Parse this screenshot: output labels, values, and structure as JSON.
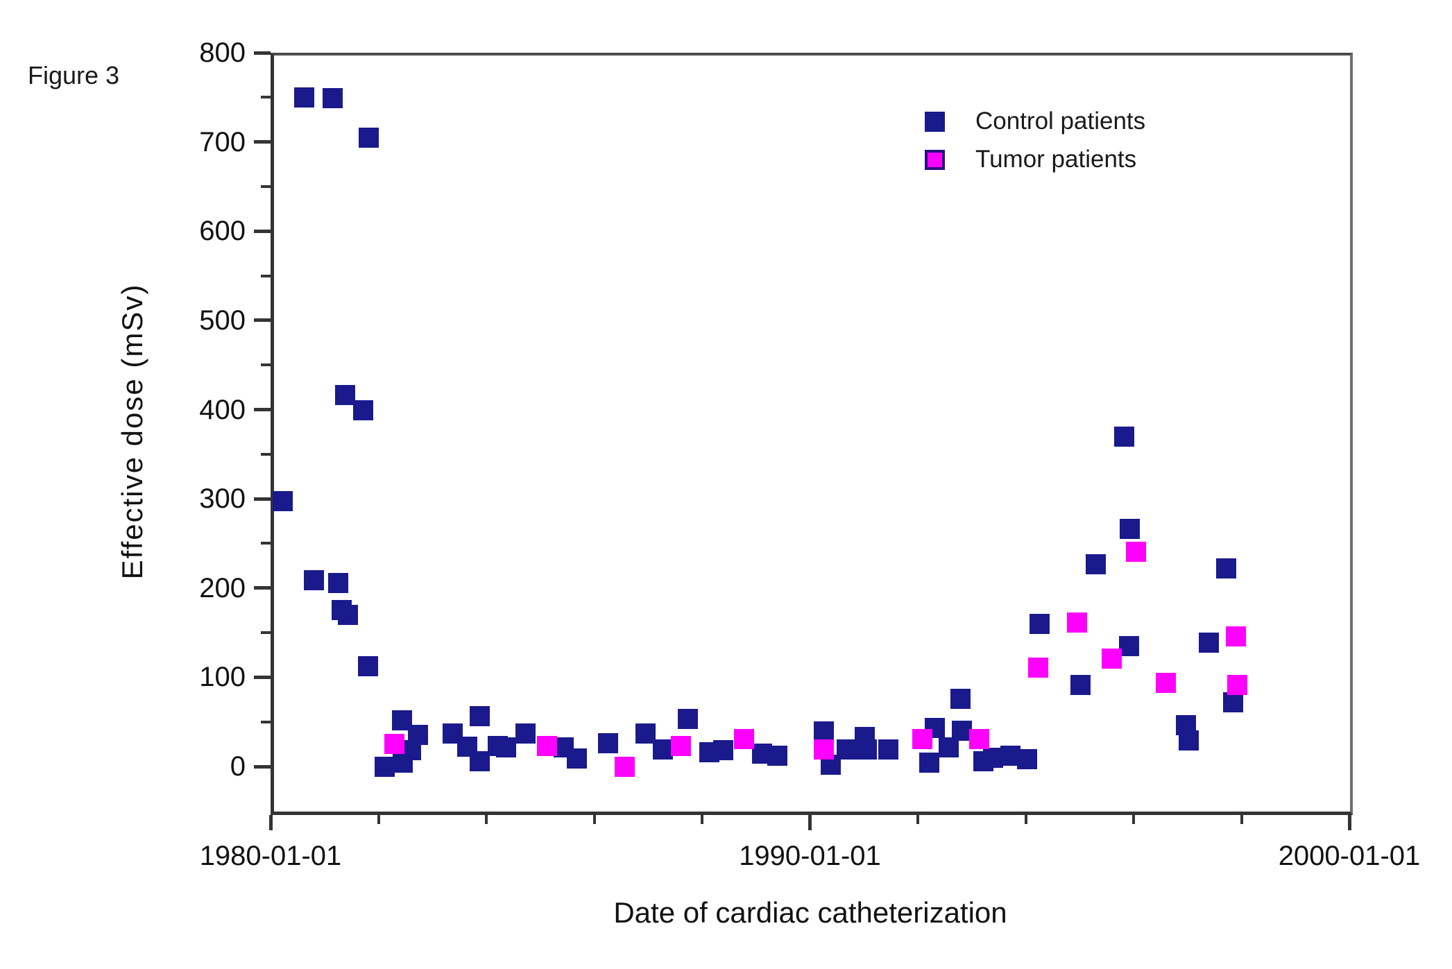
{
  "figure_label": "Figure 3",
  "colors": {
    "control": "#1a1a8c",
    "tumor": "#ff00ff",
    "axis": "#343434",
    "text": "#1a1a1a",
    "background": "#ffffff"
  },
  "legend": {
    "position": "top-right",
    "entries": [
      {
        "label": "Control patients",
        "color": "#1a1a8c"
      },
      {
        "label": "Tumor patients",
        "color": "#ff00ff"
      }
    ]
  },
  "chart_data": {
    "type": "scatter",
    "title": "",
    "xlabel": "Date of cardiac catheterization",
    "ylabel": "Effective dose (mSv)",
    "grid": false,
    "x_axis": {
      "unit": "date",
      "range_years": [
        1980,
        2000
      ],
      "major_ticks": [
        {
          "year": 1980,
          "label": "1980-01-01"
        },
        {
          "year": 1990,
          "label": "1990-01-01"
        },
        {
          "year": 2000,
          "label": "2000-01-01"
        }
      ],
      "minor_tick_years": [
        1982,
        1984,
        1986,
        1988,
        1992,
        1994,
        1996,
        1998
      ]
    },
    "y_axis": {
      "unit": "mSv",
      "range": [
        -50,
        800
      ],
      "major_ticks": [
        0,
        100,
        200,
        300,
        400,
        500,
        600,
        700,
        800
      ],
      "minor_ticks": [
        50,
        150,
        250,
        350,
        450,
        550,
        650,
        750
      ]
    },
    "series": [
      {
        "name": "Control patients",
        "marker": "square",
        "color": "#1a1a8c",
        "points": [
          [
            1980.23,
            297
          ],
          [
            1980.62,
            750
          ],
          [
            1980.8,
            209
          ],
          [
            1981.15,
            749
          ],
          [
            1981.26,
            206
          ],
          [
            1981.32,
            175
          ],
          [
            1981.44,
            170
          ],
          [
            1981.38,
            416
          ],
          [
            1981.72,
            399
          ],
          [
            1981.82,
            705
          ],
          [
            1981.81,
            112
          ],
          [
            1982.12,
            0
          ],
          [
            1982.44,
            52
          ],
          [
            1982.45,
            4
          ],
          [
            1982.6,
            18
          ],
          [
            1982.73,
            35
          ],
          [
            1983.38,
            37
          ],
          [
            1983.64,
            22
          ],
          [
            1983.88,
            56
          ],
          [
            1983.88,
            6
          ],
          [
            1984.21,
            23
          ],
          [
            1984.37,
            21
          ],
          [
            1984.73,
            37
          ],
          [
            1985.44,
            21
          ],
          [
            1985.68,
            9
          ],
          [
            1986.26,
            26
          ],
          [
            1986.95,
            37
          ],
          [
            1987.27,
            19
          ],
          [
            1987.74,
            53
          ],
          [
            1988.13,
            16
          ],
          [
            1988.39,
            18
          ],
          [
            1989.11,
            14
          ],
          [
            1989.39,
            12
          ],
          [
            1990.26,
            39
          ],
          [
            1990.38,
            2
          ],
          [
            1990.68,
            19
          ],
          [
            1991.02,
            33
          ],
          [
            1991.06,
            19
          ],
          [
            1991.45,
            19
          ],
          [
            1992.31,
            43
          ],
          [
            1992.21,
            4
          ],
          [
            1992.57,
            21
          ],
          [
            1992.82,
            40
          ],
          [
            1992.79,
            76
          ],
          [
            1993.21,
            6
          ],
          [
            1993.4,
            10
          ],
          [
            1993.72,
            12
          ],
          [
            1994.02,
            8
          ],
          [
            1994.26,
            160
          ],
          [
            1995.02,
            91
          ],
          [
            1995.3,
            227
          ],
          [
            1995.83,
            370
          ],
          [
            1995.93,
            266
          ],
          [
            1995.92,
            135
          ],
          [
            1996.97,
            46
          ],
          [
            1997.02,
            29
          ],
          [
            1997.4,
            139
          ],
          [
            1997.72,
            222
          ],
          [
            1997.85,
            72
          ]
        ]
      },
      {
        "name": "Tumor patients",
        "marker": "square",
        "color": "#ff00ff",
        "points": [
          [
            1982.3,
            25
          ],
          [
            1985.12,
            23
          ],
          [
            1986.56,
            0
          ],
          [
            1987.61,
            23
          ],
          [
            1988.78,
            31
          ],
          [
            1990.26,
            19
          ],
          [
            1992.09,
            31
          ],
          [
            1993.14,
            31
          ],
          [
            1994.23,
            111
          ],
          [
            1994.95,
            161
          ],
          [
            1995.6,
            121
          ],
          [
            1996.04,
            241
          ],
          [
            1996.6,
            94
          ],
          [
            1997.9,
            146
          ],
          [
            1997.92,
            91
          ]
        ]
      }
    ]
  }
}
